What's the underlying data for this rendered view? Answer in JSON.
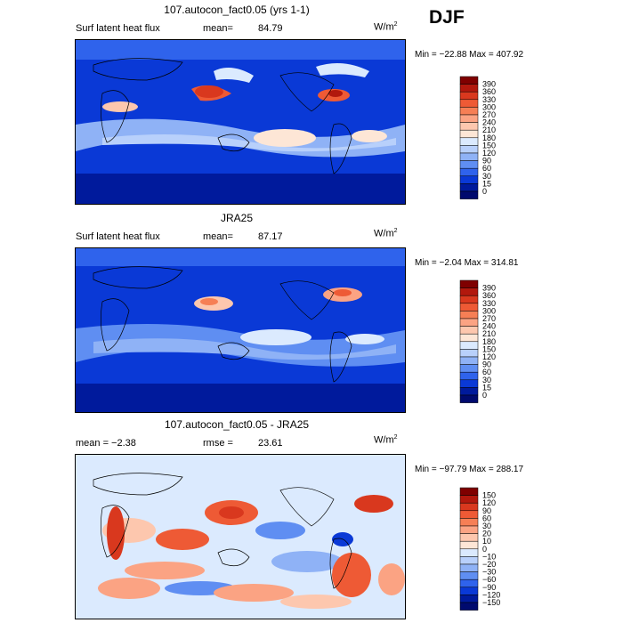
{
  "season": "DJF",
  "panels": [
    {
      "title": "107.autocon_fact0.05 (yrs 1-1)",
      "left_label": "Surf latent heat flux",
      "stat_label": "mean=",
      "stat_value": "84.79",
      "units": "W/m",
      "units_sup": "2",
      "minmax": "Min = −22.88 Max = 407.92"
    },
    {
      "title": "JRA25",
      "left_label": "Surf latent heat flux",
      "stat_label": "mean=",
      "stat_value": "87.17",
      "units": "W/m",
      "units_sup": "2",
      "minmax": "Min = −2.04 Max = 314.81"
    },
    {
      "title": "107.autocon_fact0.05 - JRA25",
      "left_label": "mean = −2.38",
      "stat_label": "rmse =",
      "stat_value": "23.61",
      "units": "W/m",
      "units_sup": "2",
      "minmax": "Min = −97.79 Max = 288.17"
    }
  ],
  "chart_data": [
    {
      "type": "heatmap",
      "colorbar": {
        "levels": [
          "390",
          "360",
          "330",
          "300",
          "270",
          "240",
          "210",
          "180",
          "150",
          "120",
          "90",
          "60",
          "30",
          "15",
          "0"
        ],
        "colors": [
          "#7f0000",
          "#b2180d",
          "#d9381e",
          "#ee5a35",
          "#f67f55",
          "#fba383",
          "#fdc7ae",
          "#fde6d6",
          "#dbeafe",
          "#b8d0fb",
          "#8fb2f6",
          "#5f8ef2",
          "#2f63ec",
          "#0a39d6",
          "#001a9c",
          "#000a6e"
        ]
      }
    },
    {
      "type": "heatmap",
      "colorbar": {
        "levels": [
          "390",
          "360",
          "330",
          "300",
          "270",
          "240",
          "210",
          "180",
          "150",
          "120",
          "90",
          "60",
          "30",
          "15",
          "0"
        ],
        "colors": [
          "#7f0000",
          "#b2180d",
          "#d9381e",
          "#ee5a35",
          "#f67f55",
          "#fba383",
          "#fdc7ae",
          "#fde6d6",
          "#dbeafe",
          "#b8d0fb",
          "#8fb2f6",
          "#5f8ef2",
          "#2f63ec",
          "#0a39d6",
          "#001a9c",
          "#000a6e"
        ]
      }
    },
    {
      "type": "heatmap",
      "colorbar": {
        "levels": [
          "150",
          "120",
          "90",
          "60",
          "30",
          "20",
          "10",
          "0",
          "−10",
          "−20",
          "−30",
          "−60",
          "−90",
          "−120",
          "−150"
        ],
        "colors": [
          "#7f0000",
          "#b2180d",
          "#d9381e",
          "#ee5a35",
          "#f67f55",
          "#fba383",
          "#fdc7ae",
          "#fde6d6",
          "#dbeafe",
          "#b8d0fb",
          "#8fb2f6",
          "#5f8ef2",
          "#2f63ec",
          "#0a39d6",
          "#001a9c",
          "#000a6e"
        ]
      }
    }
  ]
}
